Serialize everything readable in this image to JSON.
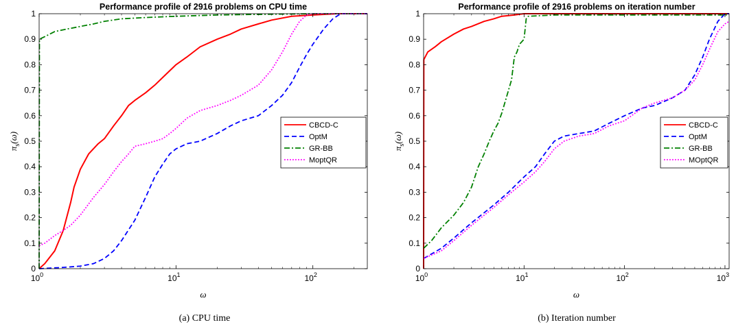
{
  "chart_data": [
    {
      "type": "line",
      "title": "Performance profile of 2916 problems on CPU time",
      "xlabel": "ω",
      "ylabel": "π_s(ω)",
      "ylabel_main": "π",
      "ylabel_sub": "s",
      "ylabel_arg": "(ω)",
      "xscale": "log",
      "xlim": [
        1,
        250
      ],
      "ylim": [
        0,
        1
      ],
      "xticks": [
        1,
        10,
        100
      ],
      "xtick_labels": [
        {
          "base": "10",
          "exp": "0"
        },
        {
          "base": "10",
          "exp": "1"
        },
        {
          "base": "10",
          "exp": "2"
        }
      ],
      "yticks": [
        0,
        0.1,
        0.2,
        0.3,
        0.4,
        0.5,
        0.6,
        0.7,
        0.8,
        0.9,
        1
      ],
      "ytick_labels": [
        "0",
        "0.1",
        "0.2",
        "0.3",
        "0.4",
        "0.5",
        "0.6",
        "0.7",
        "0.8",
        "0.9",
        "1"
      ],
      "legend_position": "right",
      "caption": "(a)  CPU time",
      "series": [
        {
          "name": "CBCD-C",
          "color": "#ff0000",
          "style": "solid",
          "points": [
            [
              1,
              0
            ],
            [
              1.1,
              0.02
            ],
            [
              1.3,
              0.07
            ],
            [
              1.5,
              0.15
            ],
            [
              1.7,
              0.26
            ],
            [
              1.8,
              0.32
            ],
            [
              2,
              0.39
            ],
            [
              2.3,
              0.45
            ],
            [
              2.7,
              0.49
            ],
            [
              3,
              0.51
            ],
            [
              3.5,
              0.56
            ],
            [
              4,
              0.6
            ],
            [
              4.5,
              0.64
            ],
            [
              5,
              0.66
            ],
            [
              6,
              0.69
            ],
            [
              7,
              0.72
            ],
            [
              8,
              0.75
            ],
            [
              10,
              0.8
            ],
            [
              12,
              0.83
            ],
            [
              15,
              0.87
            ],
            [
              20,
              0.9
            ],
            [
              25,
              0.92
            ],
            [
              30,
              0.94
            ],
            [
              40,
              0.96
            ],
            [
              50,
              0.975
            ],
            [
              70,
              0.99
            ],
            [
              100,
              0.995
            ],
            [
              150,
              1
            ],
            [
              250,
              1
            ]
          ]
        },
        {
          "name": "OptM",
          "color": "#0000ff",
          "style": "dashed",
          "points": [
            [
              1,
              0
            ],
            [
              1.5,
              0.005
            ],
            [
              2,
              0.01
            ],
            [
              2.5,
              0.02
            ],
            [
              3,
              0.04
            ],
            [
              3.5,
              0.07
            ],
            [
              4,
              0.11
            ],
            [
              5,
              0.19
            ],
            [
              6,
              0.28
            ],
            [
              7,
              0.36
            ],
            [
              8,
              0.41
            ],
            [
              9,
              0.45
            ],
            [
              10,
              0.47
            ],
            [
              12,
              0.49
            ],
            [
              15,
              0.5
            ],
            [
              20,
              0.53
            ],
            [
              25,
              0.56
            ],
            [
              30,
              0.58
            ],
            [
              40,
              0.6
            ],
            [
              50,
              0.64
            ],
            [
              60,
              0.68
            ],
            [
              70,
              0.73
            ],
            [
              80,
              0.79
            ],
            [
              90,
              0.84
            ],
            [
              100,
              0.88
            ],
            [
              120,
              0.94
            ],
            [
              140,
              0.98
            ],
            [
              160,
              1
            ],
            [
              250,
              1
            ]
          ]
        },
        {
          "name": "GR-BB",
          "color": "#008000",
          "style": "dashdot",
          "points": [
            [
              1,
              0
            ],
            [
              1.005,
              0.9
            ],
            [
              1.1,
              0.91
            ],
            [
              1.3,
              0.93
            ],
            [
              1.6,
              0.94
            ],
            [
              2,
              0.95
            ],
            [
              2.5,
              0.96
            ],
            [
              3,
              0.97
            ],
            [
              4,
              0.98
            ],
            [
              6,
              0.985
            ],
            [
              10,
              0.99
            ],
            [
              20,
              0.995
            ],
            [
              50,
              0.998
            ],
            [
              100,
              1
            ],
            [
              250,
              1
            ]
          ]
        },
        {
          "name": "MoptQR",
          "color": "#ff00ff",
          "style": "dotted",
          "points": [
            [
              1,
              0.09
            ],
            [
              1.1,
              0.1
            ],
            [
              1.3,
              0.13
            ],
            [
              1.5,
              0.15
            ],
            [
              1.7,
              0.17
            ],
            [
              2,
              0.21
            ],
            [
              2.5,
              0.28
            ],
            [
              3,
              0.33
            ],
            [
              3.5,
              0.38
            ],
            [
              4,
              0.42
            ],
            [
              4.5,
              0.45
            ],
            [
              5,
              0.48
            ],
            [
              6,
              0.49
            ],
            [
              7,
              0.5
            ],
            [
              8,
              0.51
            ],
            [
              9,
              0.53
            ],
            [
              10,
              0.55
            ],
            [
              12,
              0.59
            ],
            [
              15,
              0.62
            ],
            [
              20,
              0.64
            ],
            [
              25,
              0.66
            ],
            [
              30,
              0.68
            ],
            [
              40,
              0.72
            ],
            [
              50,
              0.78
            ],
            [
              60,
              0.85
            ],
            [
              70,
              0.92
            ],
            [
              80,
              0.97
            ],
            [
              90,
              0.995
            ],
            [
              100,
              1
            ],
            [
              250,
              1
            ]
          ]
        }
      ]
    },
    {
      "type": "line",
      "title": "Performance profile of 2916 problems on iteration number",
      "xlabel": "ω",
      "ylabel": "π_s(ω)",
      "ylabel_main": "π",
      "ylabel_sub": "s",
      "ylabel_arg": "(ω)",
      "xscale": "log",
      "xlim": [
        1,
        1100
      ],
      "ylim": [
        0,
        1
      ],
      "xticks": [
        1,
        10,
        100,
        1000
      ],
      "xtick_labels": [
        {
          "base": "10",
          "exp": "0"
        },
        {
          "base": "10",
          "exp": "1"
        },
        {
          "base": "10",
          "exp": "2"
        },
        {
          "base": "10",
          "exp": "3"
        }
      ],
      "yticks": [
        0,
        0.1,
        0.2,
        0.3,
        0.4,
        0.5,
        0.6,
        0.7,
        0.8,
        0.9,
        1
      ],
      "ytick_labels": [
        "0",
        "0.1",
        "0.2",
        "0.3",
        "0.4",
        "0.5",
        "0.6",
        "0.7",
        "0.8",
        "0.9",
        "1"
      ],
      "legend_position": "right",
      "caption": "(b)  Iteration number",
      "series": [
        {
          "name": "CBCD-C",
          "color": "#ff0000",
          "style": "solid",
          "points": [
            [
              1,
              0
            ],
            [
              1.005,
              0.82
            ],
            [
              1.1,
              0.85
            ],
            [
              1.3,
              0.87
            ],
            [
              1.5,
              0.89
            ],
            [
              2,
              0.92
            ],
            [
              2.5,
              0.94
            ],
            [
              3,
              0.95
            ],
            [
              4,
              0.97
            ],
            [
              5,
              0.98
            ],
            [
              6,
              0.99
            ],
            [
              8,
              0.995
            ],
            [
              10,
              1
            ],
            [
              1100,
              1
            ]
          ]
        },
        {
          "name": "OptM",
          "color": "#0000ff",
          "style": "dashed",
          "points": [
            [
              1,
              0.04
            ],
            [
              1.5,
              0.08
            ],
            [
              2,
              0.12
            ],
            [
              3,
              0.18
            ],
            [
              5,
              0.25
            ],
            [
              7,
              0.3
            ],
            [
              10,
              0.36
            ],
            [
              13,
              0.4
            ],
            [
              16,
              0.45
            ],
            [
              20,
              0.5
            ],
            [
              25,
              0.52
            ],
            [
              35,
              0.53
            ],
            [
              50,
              0.54
            ],
            [
              70,
              0.57
            ],
            [
              100,
              0.6
            ],
            [
              150,
              0.63
            ],
            [
              200,
              0.64
            ],
            [
              300,
              0.67
            ],
            [
              400,
              0.7
            ],
            [
              500,
              0.76
            ],
            [
              600,
              0.83
            ],
            [
              700,
              0.9
            ],
            [
              850,
              0.97
            ],
            [
              1000,
              1
            ],
            [
              1100,
              1
            ]
          ]
        },
        {
          "name": "GR-BB",
          "color": "#008000",
          "style": "dashdot",
          "points": [
            [
              1,
              0.08
            ],
            [
              1.2,
              0.11
            ],
            [
              1.5,
              0.16
            ],
            [
              2,
              0.21
            ],
            [
              2.5,
              0.26
            ],
            [
              3,
              0.32
            ],
            [
              3.5,
              0.4
            ],
            [
              4,
              0.45
            ],
            [
              4.5,
              0.5
            ],
            [
              5,
              0.54
            ],
            [
              5.5,
              0.57
            ],
            [
              6,
              0.61
            ],
            [
              7,
              0.7
            ],
            [
              7.5,
              0.74
            ],
            [
              8,
              0.83
            ],
            [
              8.5,
              0.85
            ],
            [
              9,
              0.88
            ],
            [
              10,
              0.9
            ],
            [
              10.5,
              0.98
            ],
            [
              11,
              0.99
            ],
            [
              20,
              0.995
            ],
            [
              1100,
              0.995
            ]
          ]
        },
        {
          "name": "MOptQR",
          "color": "#ff00ff",
          "style": "dotted",
          "points": [
            [
              1,
              0.04
            ],
            [
              1.5,
              0.07
            ],
            [
              2,
              0.11
            ],
            [
              3,
              0.17
            ],
            [
              5,
              0.24
            ],
            [
              7,
              0.29
            ],
            [
              10,
              0.34
            ],
            [
              13,
              0.38
            ],
            [
              16,
              0.42
            ],
            [
              20,
              0.47
            ],
            [
              25,
              0.5
            ],
            [
              35,
              0.52
            ],
            [
              50,
              0.53
            ],
            [
              70,
              0.56
            ],
            [
              100,
              0.58
            ],
            [
              150,
              0.63
            ],
            [
              200,
              0.65
            ],
            [
              300,
              0.67
            ],
            [
              400,
              0.7
            ],
            [
              500,
              0.74
            ],
            [
              600,
              0.8
            ],
            [
              700,
              0.86
            ],
            [
              850,
              0.93
            ],
            [
              1000,
              0.96
            ],
            [
              1100,
              0.97
            ]
          ]
        }
      ]
    }
  ]
}
